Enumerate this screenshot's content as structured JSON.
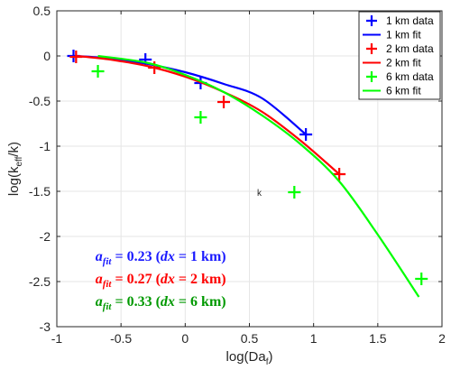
{
  "chart_data": {
    "type": "scatter",
    "title": "",
    "xlabel": "log(Da",
    "xlabel_sub": "f",
    "xlabel_close": ")",
    "ylabel": "log(k",
    "ylabel_sub": "eff",
    "ylabel_close": "/k)",
    "xlim": [
      -1,
      2
    ],
    "ylim": [
      -3,
      0.5
    ],
    "xticks": [
      -1,
      -0.5,
      0,
      0.5,
      1,
      1.5,
      2
    ],
    "xtick_labels": [
      "-1",
      "-0.5",
      "0",
      "0.5",
      "1",
      "1.5",
      "2"
    ],
    "yticks": [
      -3,
      -2.5,
      -2,
      -1.5,
      -1,
      -0.5,
      0,
      0.5
    ],
    "ytick_labels": [
      "-3",
      "-2.5",
      "-2",
      "-1.5",
      "-1",
      "-0.5",
      "0",
      "0.5"
    ],
    "grid": true,
    "legend_position": "top-right",
    "stray_label": "k",
    "stray_label_pos": [
      0.56,
      -1.55
    ],
    "series": [
      {
        "name": "1 km data",
        "kind": "markers",
        "color": "#0000ff",
        "x": [
          -0.87,
          -0.31,
          0.12,
          0.94
        ],
        "y": [
          0.0,
          -0.04,
          -0.3,
          -0.87
        ]
      },
      {
        "name": "1 km fit",
        "kind": "line",
        "color": "#0000ff",
        "x": [
          -0.87,
          -0.6,
          -0.3,
          0.0,
          0.3,
          0.6,
          0.94
        ],
        "y": [
          0.0,
          -0.026,
          -0.087,
          -0.18,
          -0.31,
          -0.47,
          -0.87
        ]
      },
      {
        "name": "2 km data",
        "kind": "markers",
        "color": "#ff0000",
        "x": [
          -0.85,
          -0.24,
          0.3,
          1.2
        ],
        "y": [
          -0.01,
          -0.13,
          -0.51,
          -1.31
        ]
      },
      {
        "name": "2 km fit",
        "kind": "line",
        "color": "#ff0000",
        "x": [
          -0.85,
          -0.6,
          -0.3,
          0.0,
          0.3,
          0.6,
          0.9,
          1.2
        ],
        "y": [
          0.0,
          -0.037,
          -0.11,
          -0.23,
          -0.4,
          -0.62,
          -0.94,
          -1.31
        ]
      },
      {
        "name": "6 km data",
        "kind": "markers",
        "color": "#00ff00",
        "x": [
          -0.68,
          0.12,
          0.85,
          1.84
        ],
        "y": [
          -0.17,
          -0.68,
          -1.51,
          -2.47
        ]
      },
      {
        "name": "6 km fit",
        "kind": "line",
        "color": "#00ff00",
        "x": [
          -0.68,
          -0.3,
          0.0,
          0.3,
          0.6,
          0.9,
          1.2,
          1.5,
          1.82
        ],
        "y": [
          0.0,
          -0.075,
          -0.21,
          -0.4,
          -0.66,
          -0.98,
          -1.39,
          -1.98,
          -2.67
        ]
      }
    ],
    "annotations": [
      {
        "a": "a",
        "sub": "fit",
        "eq": " = 0.23 (",
        "dx": "dx",
        "rest": " = 1 km)",
        "color": "#1a1aff",
        "x": -0.7,
        "y": -2.27
      },
      {
        "a": "a",
        "sub": "fit",
        "eq": " = 0.27 (",
        "dx": "dx",
        "rest": " = 2 km)",
        "color": "#ff0000",
        "x": -0.7,
        "y": -2.52
      },
      {
        "a": "a",
        "sub": "fit",
        "eq": " = 0.33 (",
        "dx": "dx",
        "rest": " = 6 km)",
        "color": "#009900",
        "x": -0.7,
        "y": -2.77
      }
    ]
  }
}
